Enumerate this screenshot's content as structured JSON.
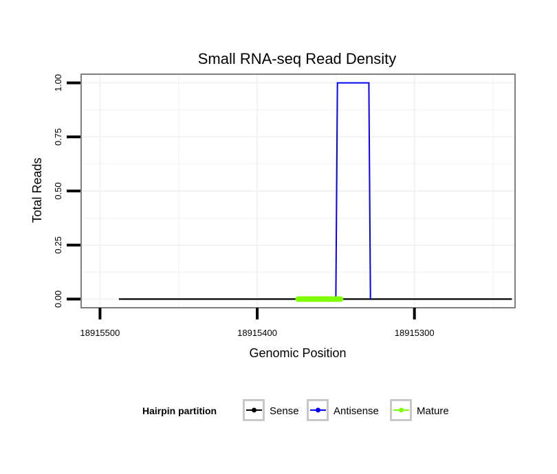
{
  "chart_data": {
    "type": "line",
    "title": "Small RNA-seq Read Density",
    "xlabel": "Genomic Position",
    "ylabel": "Total Reads",
    "xlim": [
      18915512,
      18915236
    ],
    "ylim": [
      -0.04,
      1.04
    ],
    "x_reversed": true,
    "x_ticks": [
      18915500,
      18915400,
      18915300
    ],
    "x_tick_labels": [
      "18915500",
      "18915400",
      "18915300"
    ],
    "y_ticks": [
      0,
      0.25,
      0.5,
      0.75,
      1
    ],
    "y_tick_labels": [
      "0.00",
      "0.25",
      "0.50",
      "0.75",
      "1.00"
    ],
    "grid": true,
    "legend_position": "bottom",
    "legend_title": "Hairpin partition",
    "series": [
      {
        "name": "Sense",
        "color": "#000000",
        "x": [
          18915488,
          18915238
        ],
        "y": [
          0,
          0
        ]
      },
      {
        "name": "Antisense",
        "color": "#0000ff",
        "x": [
          18915350,
          18915349,
          18915329,
          18915328
        ],
        "y": [
          0,
          1,
          1,
          0
        ]
      },
      {
        "name": "Mature",
        "color": "#7fff00",
        "x": [
          18915374,
          18915347
        ],
        "y": [
          0,
          0
        ]
      }
    ]
  }
}
